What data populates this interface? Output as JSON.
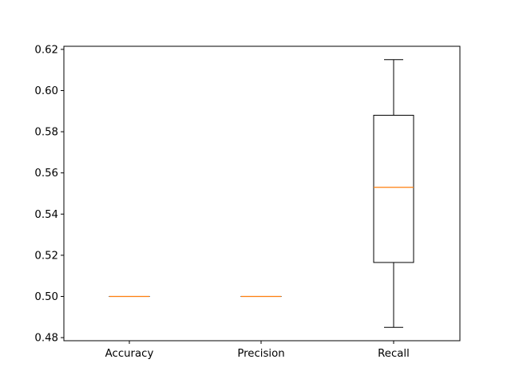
{
  "chart_data": {
    "type": "boxplot",
    "categories": [
      "Accuracy",
      "Precision",
      "Recall"
    ],
    "boxes": [
      {
        "name": "Accuracy",
        "whislo": 0.5,
        "q1": 0.5,
        "med": 0.5,
        "q3": 0.5,
        "whishi": 0.5
      },
      {
        "name": "Precision",
        "whislo": 0.5,
        "q1": 0.5,
        "med": 0.5,
        "q3": 0.5,
        "whishi": 0.5
      },
      {
        "name": "Recall",
        "whislo": 0.485,
        "q1": 0.5165,
        "med": 0.553,
        "q3": 0.588,
        "whishi": 0.615
      }
    ],
    "yticks": [
      "0.48",
      "0.50",
      "0.52",
      "0.54",
      "0.56",
      "0.58",
      "0.60",
      "0.62"
    ],
    "ylim": [
      0.4785,
      0.6215
    ],
    "grid": false,
    "colors": {
      "box": "#000000",
      "median": "#ff7f0e"
    }
  }
}
